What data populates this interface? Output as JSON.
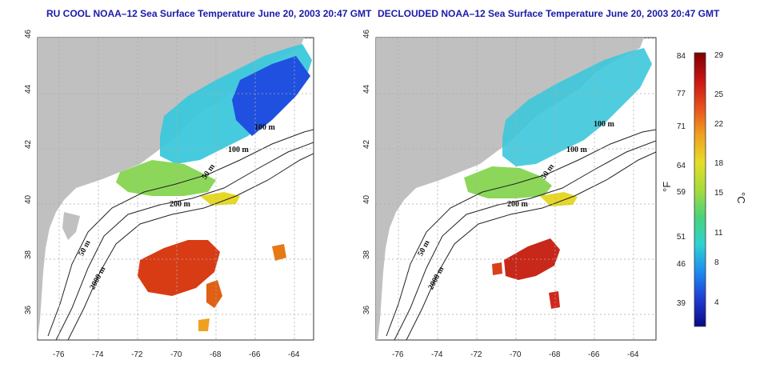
{
  "panels": [
    {
      "title": "RU COOL NOAA–12 Sea Surface Temperature June 20, 2003 20:47 GMT",
      "x_ticks": [
        "-76",
        "-74",
        "-72",
        "-70",
        "-68",
        "-66",
        "-64"
      ],
      "y_ticks": [
        "36",
        "38",
        "40",
        "42",
        "44",
        "46"
      ],
      "contour_labels": [
        "100 m",
        "100 m",
        "50 m",
        "200 m",
        "50 m",
        "2000 m"
      ]
    },
    {
      "title": "DECLOUDED NOAA–12 Sea Surface Temperature June 20, 2003 20:47 GMT",
      "x_ticks": [
        "-76",
        "-74",
        "-72",
        "-70",
        "-68",
        "-66",
        "-64"
      ],
      "y_ticks": [
        "36",
        "38",
        "40",
        "42",
        "44",
        "46"
      ],
      "contour_labels": [
        "100 m",
        "100 m",
        "50 m",
        "200 m",
        "50 m",
        "2000 m"
      ]
    }
  ],
  "colorbar": {
    "f_label": "°F",
    "c_label": "°C",
    "f_ticks": [
      "84",
      "77",
      "71",
      "64",
      "59",
      "51",
      "46",
      "39"
    ],
    "c_ticks": [
      "29",
      "25",
      "22",
      "18",
      "15",
      "11",
      "8",
      "4"
    ],
    "colors": [
      "#7f0000",
      "#c81414",
      "#e8501e",
      "#f0a020",
      "#e6dc28",
      "#a6dc3c",
      "#4ad27a",
      "#2ed2d2",
      "#1e8cf0",
      "#1e3cd2",
      "#0a0a82"
    ]
  },
  "colors": {
    "land": "#c0c0c0",
    "ocean": "#ffffff",
    "title": "#1a1aa8",
    "grid": "#aaaaaa"
  }
}
